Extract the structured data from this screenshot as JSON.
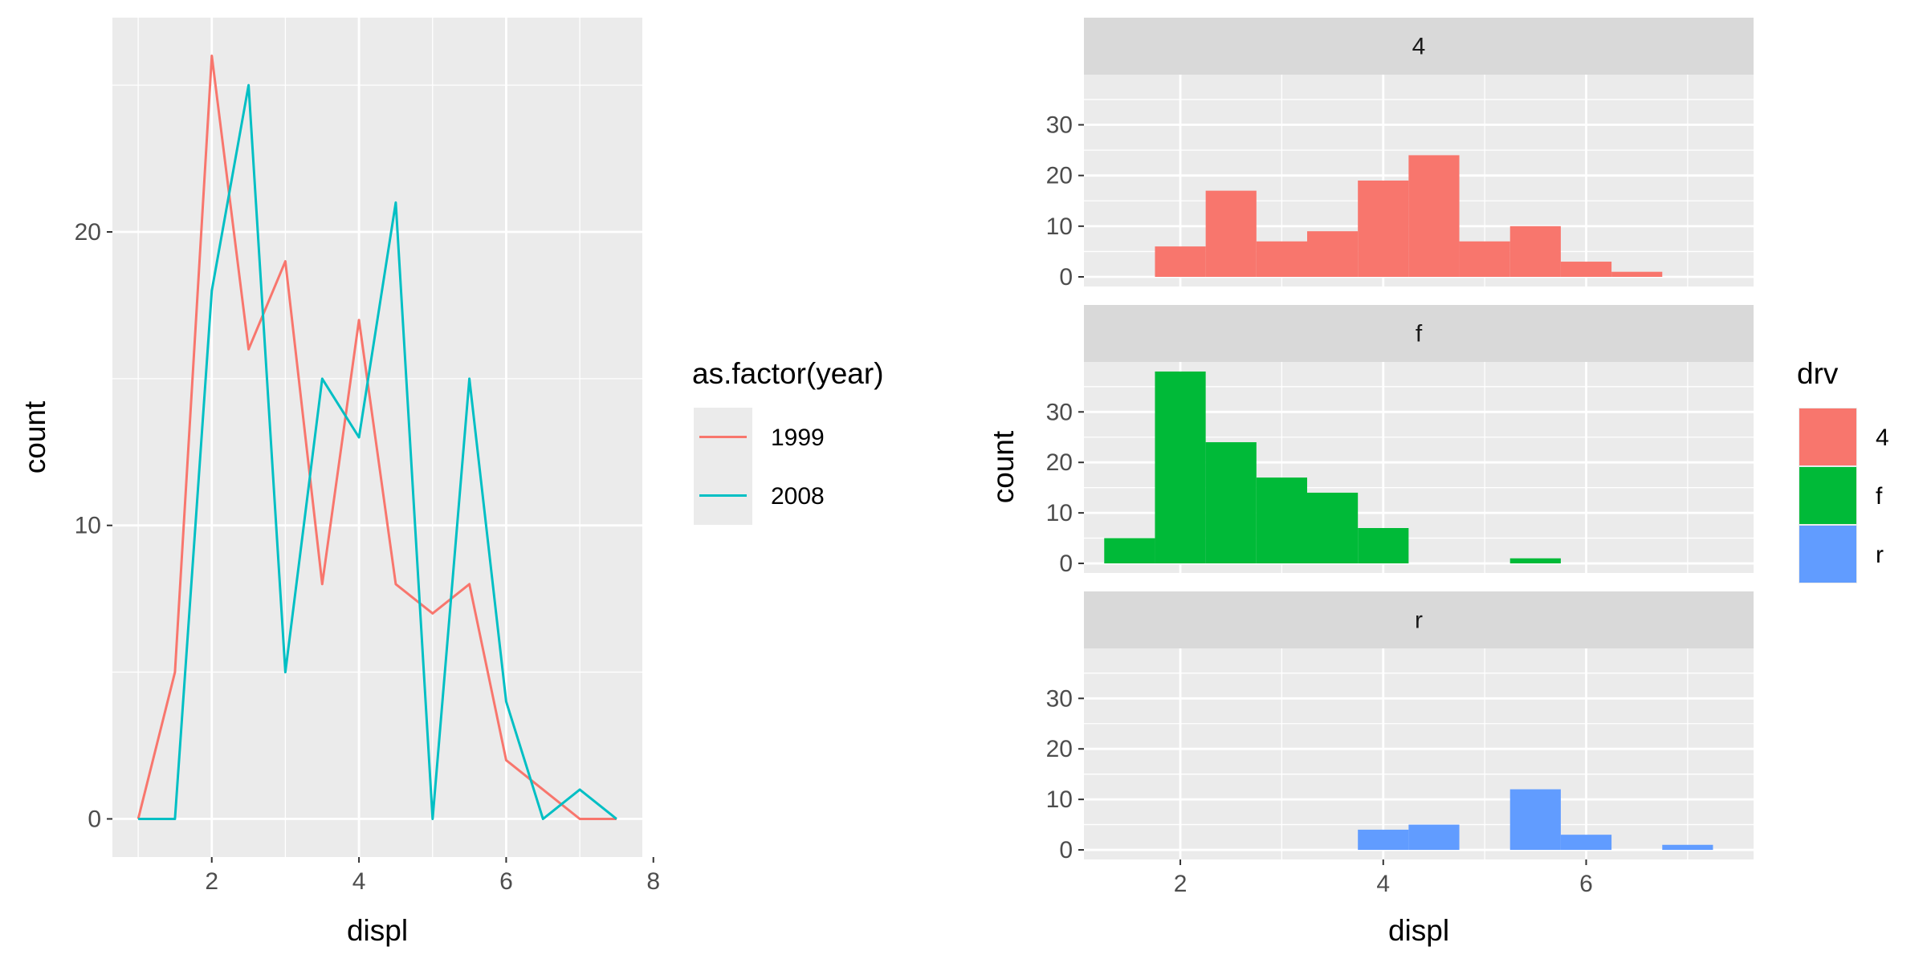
{
  "chart_data": [
    {
      "type": "line",
      "xlabel": "displ",
      "ylabel": "count",
      "xlim": [
        0.65,
        7.85
      ],
      "ylim": [
        -1.3,
        27.3
      ],
      "x_ticks": [
        2,
        4,
        6,
        8
      ],
      "y_ticks": [
        0,
        10,
        20
      ],
      "grid": true,
      "legend": {
        "title": "as.factor(year)",
        "position": "right"
      },
      "x": [
        1.0,
        1.5,
        2.0,
        2.5,
        3.0,
        3.5,
        4.0,
        4.5,
        5.0,
        5.5,
        6.0,
        6.5,
        7.0,
        7.5
      ],
      "series": [
        {
          "name": "1999",
          "color": "#F8766D",
          "values": [
            0,
            5,
            26,
            16,
            19,
            8,
            17,
            8,
            7,
            8,
            2,
            1,
            0,
            0
          ]
        },
        {
          "name": "2008",
          "color": "#00BFC4",
          "values": [
            0,
            0,
            18,
            25,
            5,
            15,
            13,
            21,
            0,
            15,
            4,
            0,
            1,
            0
          ]
        }
      ]
    },
    {
      "type": "bar",
      "facet_by": "drv",
      "xlabel": "displ",
      "ylabel": "count",
      "xlim": [
        1.05,
        7.65
      ],
      "ylim": [
        -1.9,
        39.9
      ],
      "x_ticks": [
        2,
        4,
        6
      ],
      "y_ticks": [
        0,
        10,
        20,
        30
      ],
      "bin_width": 0.5,
      "grid": true,
      "legend": {
        "title": "drv",
        "position": "right"
      },
      "panels": [
        {
          "label": "4",
          "color": "#F8766D",
          "bins": [
            {
              "x": 2.0,
              "count": 6
            },
            {
              "x": 2.5,
              "count": 17
            },
            {
              "x": 3.0,
              "count": 7
            },
            {
              "x": 3.5,
              "count": 9
            },
            {
              "x": 4.0,
              "count": 19
            },
            {
              "x": 4.5,
              "count": 24
            },
            {
              "x": 5.0,
              "count": 7
            },
            {
              "x": 5.5,
              "count": 10
            },
            {
              "x": 6.0,
              "count": 3
            },
            {
              "x": 6.5,
              "count": 1
            }
          ]
        },
        {
          "label": "f",
          "color": "#00BA38",
          "bins": [
            {
              "x": 1.5,
              "count": 5
            },
            {
              "x": 2.0,
              "count": 38
            },
            {
              "x": 2.5,
              "count": 24
            },
            {
              "x": 3.0,
              "count": 17
            },
            {
              "x": 3.5,
              "count": 14
            },
            {
              "x": 4.0,
              "count": 7
            },
            {
              "x": 5.5,
              "count": 1
            }
          ]
        },
        {
          "label": "r",
          "color": "#619CFF",
          "bins": [
            {
              "x": 4.0,
              "count": 4
            },
            {
              "x": 4.5,
              "count": 5
            },
            {
              "x": 5.5,
              "count": 12
            },
            {
              "x": 6.0,
              "count": 3
            },
            {
              "x": 7.0,
              "count": 1
            }
          ]
        }
      ]
    }
  ]
}
